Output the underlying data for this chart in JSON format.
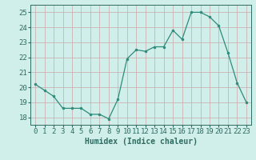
{
  "x": [
    0,
    1,
    2,
    3,
    4,
    5,
    6,
    7,
    8,
    9,
    10,
    11,
    12,
    13,
    14,
    15,
    16,
    17,
    18,
    19,
    20,
    21,
    22,
    23
  ],
  "y": [
    20.2,
    19.8,
    19.4,
    18.6,
    18.6,
    18.6,
    18.2,
    18.2,
    17.9,
    19.2,
    21.9,
    22.5,
    22.4,
    22.7,
    22.7,
    23.8,
    23.2,
    25.0,
    25.0,
    24.7,
    24.1,
    22.3,
    20.3,
    19.0
  ],
  "line_color": "#2e8b7a",
  "marker_color": "#2e8b7a",
  "bg_color": "#d0eeea",
  "grid_color_v": "#c8a8a8",
  "grid_color_h": "#c8a8a8",
  "xlabel": "Humidex (Indice chaleur)",
  "ylim": [
    17.5,
    25.5
  ],
  "xlim": [
    -0.5,
    23.5
  ],
  "yticks": [
    18,
    19,
    20,
    21,
    22,
    23,
    24,
    25
  ],
  "xticks": [
    0,
    1,
    2,
    3,
    4,
    5,
    6,
    7,
    8,
    9,
    10,
    11,
    12,
    13,
    14,
    15,
    16,
    17,
    18,
    19,
    20,
    21,
    22,
    23
  ],
  "tick_color": "#2e6b60",
  "label_fontsize": 7,
  "tick_fontsize": 6.5
}
